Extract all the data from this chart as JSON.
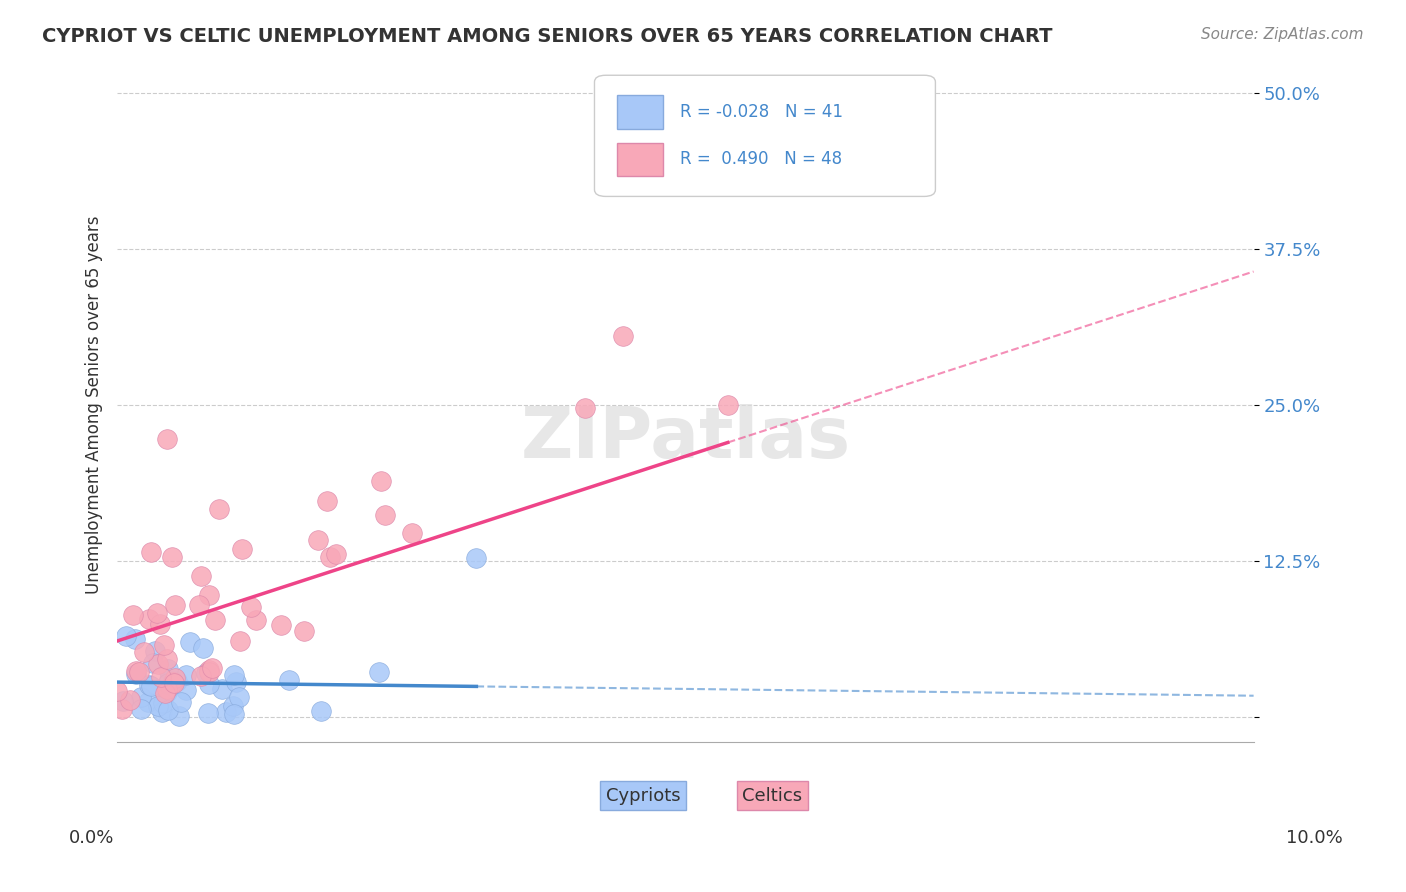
{
  "title": "CYPRIOT VS CELTIC UNEMPLOYMENT AMONG SENIORS OVER 65 YEARS CORRELATION CHART",
  "source": "Source: ZipAtlas.com",
  "ylabel": "Unemployment Among Seniors over 65 years",
  "yticks": [
    0.0,
    0.125,
    0.25,
    0.375,
    0.5
  ],
  "ytick_labels": [
    "",
    "12.5%",
    "25.0%",
    "37.5%",
    "50.0%"
  ],
  "xlim": [
    0.0,
    0.1
  ],
  "ylim": [
    -0.02,
    0.52
  ],
  "cypriot_R": -0.028,
  "cypriot_N": 41,
  "celtic_R": 0.49,
  "celtic_N": 48,
  "cypriot_color": "#a8c8f8",
  "celtic_color": "#f8a8b8",
  "cypriot_line_color": "#4488cc",
  "celtic_line_color": "#ee4488",
  "background_color": "#ffffff",
  "watermark": "ZIPatlas"
}
